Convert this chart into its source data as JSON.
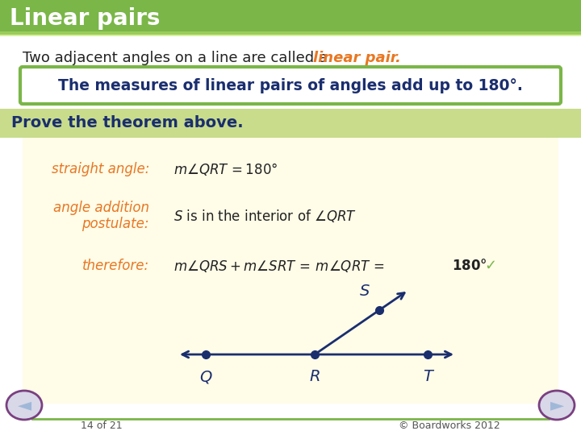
{
  "title": "Linear pairs",
  "title_bg": "#7ab648",
  "title_color": "#ffffff",
  "body_bg": "#f0f0f0",
  "line1_text_plain": "Two adjacent angles on a line are called a ",
  "line1_highlight": "linear pair.",
  "line1_highlight_color": "#e87722",
  "box_text": "The measures of linear pairs of angles add up to 180°.",
  "box_text_color": "#1a2e6e",
  "box_border_color": "#7ab648",
  "box_bg": "#ffffff",
  "prove_text": "Prove the theorem above.",
  "prove_bg": "#c8dc8c",
  "prove_text_color": "#1a2e6e",
  "table_bg": "#fffce8",
  "label1": "straight angle:",
  "label2a": "angle addition",
  "label2b": "postulate:",
  "label3": "therefore:",
  "label_color": "#e87722",
  "eq3_check_color": "#7ab648",
  "footer_left": "14 of 21",
  "footer_right": "© Boardworks 2012",
  "footer_bg": "#ffffff",
  "footer_line_color": "#7ab648",
  "diagram_line_color": "#1a2e6e",
  "nav_arrow_fill": "#a0b8d8",
  "nav_circle_border": "#7a4080"
}
